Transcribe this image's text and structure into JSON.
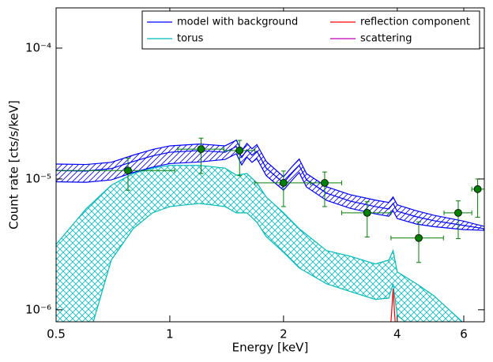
{
  "chart_data": {
    "type": "line",
    "xlabel": "Energy [keV]",
    "ylabel": "Count rate [cts/s/keV]",
    "xscale": "log",
    "yscale": "log",
    "xlim": [
      0.5,
      6.8
    ],
    "ylim": [
      8.1e-07,
      0.000203
    ],
    "xticks": [
      0.5,
      1,
      2,
      4,
      6
    ],
    "yticks": [
      {
        "value": 1e-06,
        "label": "10⁻⁶"
      },
      {
        "value": 1e-05,
        "label": "10⁻⁵"
      },
      {
        "value": 0.0001,
        "label": "10⁻⁴"
      }
    ],
    "legend": "upper right",
    "legend_columns": 2,
    "series": [
      {
        "name": "model with background",
        "color": "#0000ff",
        "hatch": "diagonal",
        "x": [
          0.5,
          0.6,
          0.7,
          0.8,
          0.9,
          1.0,
          1.2,
          1.4,
          1.5,
          1.55,
          1.6,
          1.65,
          1.7,
          1.8,
          2.0,
          2.1,
          2.2,
          2.3,
          2.6,
          3.0,
          3.5,
          3.8,
          3.9,
          4.0,
          4.5,
          5.0,
          6.0,
          6.8
        ],
        "values": [
          1.16e-05,
          1.15e-05,
          1.2e-05,
          1.36e-05,
          1.5e-05,
          1.6e-05,
          1.65e-05,
          1.6e-05,
          1.77e-05,
          1.46e-05,
          1.67e-05,
          1.52e-05,
          1.63e-05,
          1.21e-05,
          9.33e-06,
          1.1e-05,
          1.27e-05,
          9.86e-06,
          7.79e-06,
          6.78e-06,
          6.15e-06,
          5.9e-06,
          6.5e-06,
          5.66e-06,
          5.14e-06,
          4.8e-06,
          4.41e-06,
          4.17e-06
        ],
        "upper": [
          1.3e-05,
          1.29e-05,
          1.34e-05,
          1.52e-05,
          1.68e-05,
          1.79e-05,
          1.85e-05,
          1.79e-05,
          1.98e-05,
          1.64e-05,
          1.87e-05,
          1.7e-05,
          1.83e-05,
          1.36e-05,
          1.04e-05,
          1.23e-05,
          1.42e-05,
          1.1e-05,
          8.72e-06,
          7.59e-06,
          6.89e-06,
          6.61e-06,
          7.28e-06,
          6.34e-06,
          5.71e-06,
          5.28e-06,
          4.76e-06,
          4.34e-06
        ],
        "lower": [
          9.51e-06,
          9.43e-06,
          9.84e-06,
          1.12e-05,
          1.23e-05,
          1.31e-05,
          1.35e-05,
          1.41e-05,
          1.56e-05,
          1.28e-05,
          1.47e-05,
          1.34e-05,
          1.43e-05,
          1.06e-05,
          8.21e-06,
          9.68e-06,
          1.12e-05,
          8.68e-06,
          6.86e-06,
          5.97e-06,
          5.41e-06,
          5.19e-06,
          5.72e-06,
          4.98e-06,
          4.52e-06,
          4.32e-06,
          4.1e-06,
          4.05e-06
        ]
      },
      {
        "name": "reflection component",
        "color": "#ff0000",
        "x": [
          3.8,
          3.86,
          3.9,
          3.94,
          4.0
        ],
        "values": [
          5e-07,
          9e-07,
          1.45e-06,
          9e-07,
          5e-07
        ]
      },
      {
        "name": "torus",
        "color": "#00bbbb",
        "hatch": "cross",
        "x": [
          0.5,
          0.6,
          0.7,
          0.8,
          0.9,
          1.0,
          1.2,
          1.4,
          1.5,
          1.6,
          1.7,
          1.8,
          2.0,
          2.2,
          2.6,
          3.0,
          3.5,
          3.8,
          3.9,
          4.0,
          4.5,
          5.0,
          6.0
        ],
        "upper": [
          3.16e-06,
          5.9e-06,
          8.96e-06,
          1.1e-05,
          1.21e-05,
          1.27e-05,
          1.27e-05,
          1.21e-05,
          1.07e-05,
          1.1e-05,
          9.33e-06,
          7.27e-06,
          5.51e-06,
          4.17e-06,
          2.83e-06,
          2.57e-06,
          2.24e-06,
          2.4e-06,
          2.83e-06,
          1.95e-06,
          1.58e-06,
          1.28e-06,
          7.91e-07
        ],
        "lower": [
          6.87e-07,
          5.21e-07,
          2.4e-06,
          4.17e-06,
          5.51e-06,
          6.15e-06,
          6.5e-06,
          6.15e-06,
          5.51e-06,
          5.51e-06,
          4.67e-06,
          3.63e-06,
          2.75e-06,
          2.09e-06,
          1.58e-06,
          1.38e-06,
          1.2e-06,
          1.23e-06,
          1.58e-06,
          9.08e-07,
          6.87e-07,
          5.21e-07,
          3.43e-07
        ]
      },
      {
        "name": "scattering",
        "color": "#bb00bb",
        "x": [],
        "values": []
      }
    ],
    "points": {
      "color": "#008000",
      "x": [
        0.775,
        1.21,
        1.53,
        2.0,
        2.57,
        3.33,
        4.56,
        5.8,
        6.53
      ],
      "values": [
        1.16e-05,
        1.69e-05,
        1.65e-05,
        9.33e-06,
        9.33e-06,
        5.51e-06,
        3.54e-06,
        5.51e-06,
        8.36e-06
      ],
      "x_low": [
        0.5,
        1.05,
        1.39,
        1.68,
        2.36,
        2.85,
        3.85,
        5.32,
        6.3
      ],
      "x_high": [
        1.03,
        1.39,
        1.68,
        2.36,
        2.85,
        3.85,
        5.3,
        6.3,
        6.8
      ],
      "y_low": [
        8.2e-06,
        1.1e-05,
        1.06e-05,
        6.15e-06,
        6.15e-06,
        3.6e-06,
        2.3e-06,
        3.5e-06,
        5.1e-06
      ],
      "y_high": [
        1.44e-05,
        2.05e-05,
        1.97e-05,
        1.15e-05,
        1.13e-05,
        6.7e-06,
        4.7e-06,
        6.8e-06,
        1e-05
      ]
    }
  }
}
